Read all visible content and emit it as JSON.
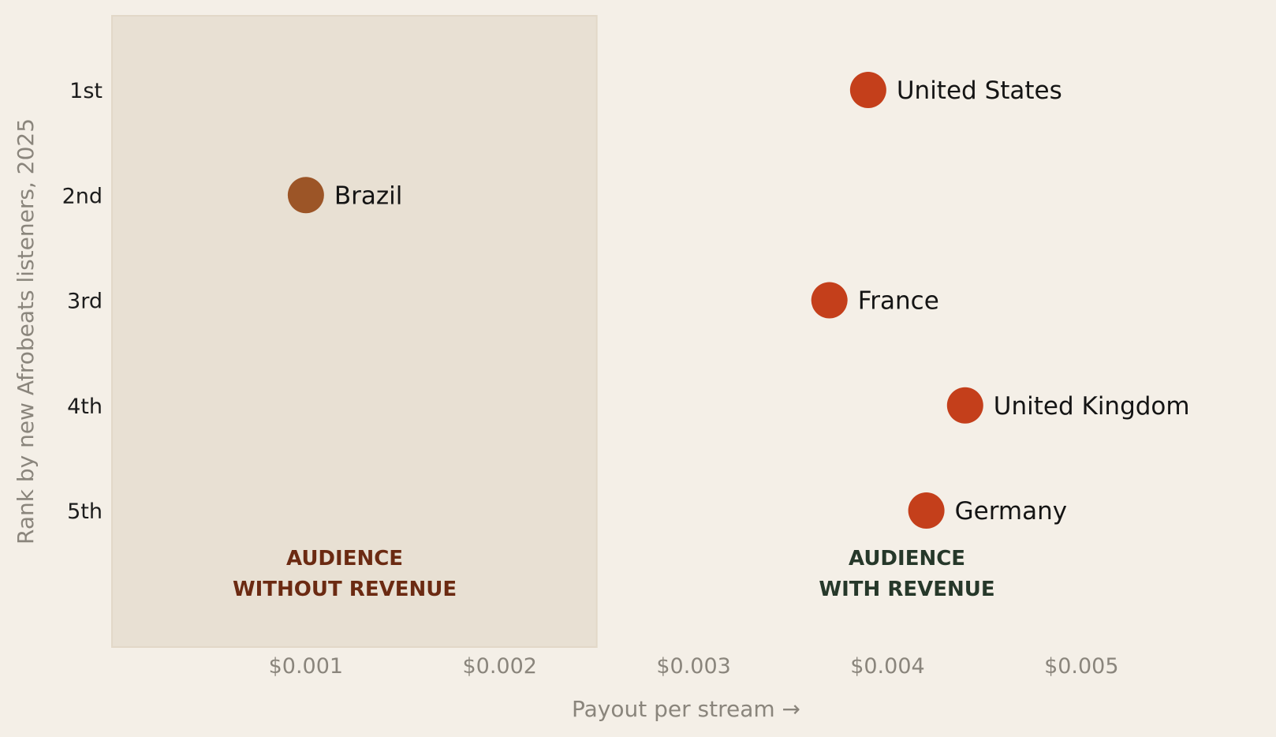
{
  "chart_data": {
    "type": "scatter",
    "title": "",
    "xlabel": "Payout per stream  →",
    "ylabel": "Rank by new Afrobeats listeners, 2025",
    "xlim": [
      0.0,
      0.0058
    ],
    "x_ticks": [
      {
        "value": 0.001,
        "label": "$0.001"
      },
      {
        "value": 0.002,
        "label": "$0.002"
      },
      {
        "value": 0.003,
        "label": "$0.003"
      },
      {
        "value": 0.004,
        "label": "$0.004"
      },
      {
        "value": 0.005,
        "label": "$0.005"
      }
    ],
    "y_categories": [
      "1st",
      "2nd",
      "3rd",
      "4th",
      "5th"
    ],
    "points": [
      {
        "label": "United States",
        "x": 0.0039,
        "rank": 1,
        "color": "#c43f1b"
      },
      {
        "label": "Brazil",
        "x": 0.001,
        "rank": 2,
        "color": "#9c5527"
      },
      {
        "label": "France",
        "x": 0.0037,
        "rank": 3,
        "color": "#c43f1b"
      },
      {
        "label": "United Kingdom",
        "x": 0.0044,
        "rank": 4,
        "color": "#c43f1b"
      },
      {
        "label": "Germany",
        "x": 0.0042,
        "rank": 5,
        "color": "#c43f1b"
      }
    ],
    "shaded_region": {
      "x_range": [
        0.0,
        0.0025
      ],
      "color": "#e8e0d3"
    },
    "annotations": [
      {
        "lines": [
          "AUDIENCE",
          "WITHOUT REVENUE"
        ],
        "x": 0.0012,
        "color": "#6b2a12"
      },
      {
        "lines": [
          "AUDIENCE",
          "WITH REVENUE"
        ],
        "x": 0.0041,
        "color": "#26382a"
      }
    ],
    "grid": false,
    "legend": "none"
  }
}
